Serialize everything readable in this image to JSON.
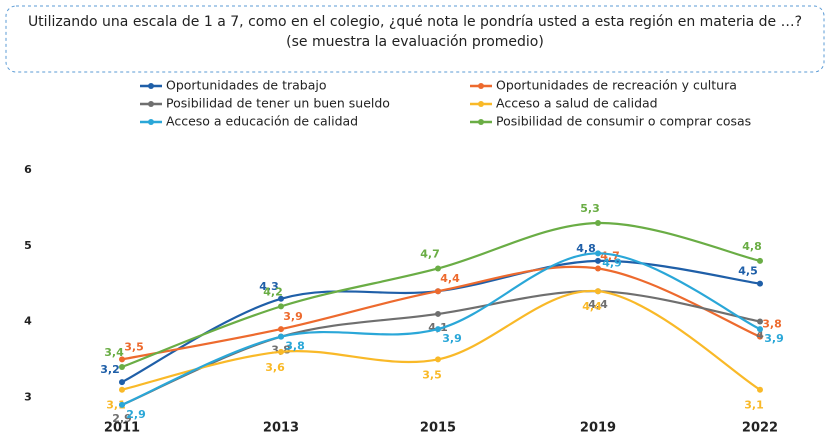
{
  "chart_data": {
    "type": "line",
    "title": "Utilizando una escala de 1 a 7, como en el colegio, ¿qué nota le pondría usted a esta región en materia de …? (se muestra la evaluación promedio)",
    "categories": [
      "2011",
      "2013",
      "2015",
      "2019",
      "2022"
    ],
    "ylim": [
      2.8,
      6.1
    ],
    "yticks": [
      3,
      4,
      5,
      6
    ],
    "grid": false,
    "series": [
      {
        "name": "Oportunidades de trabajo",
        "color": "#1f5fa8",
        "values": [
          3.2,
          4.3,
          4.4,
          4.8,
          4.5
        ],
        "value_labels": [
          "3,2",
          "4,3",
          null,
          "4,8",
          "4,5"
        ]
      },
      {
        "name": "Oportunidades de recreación y cultura",
        "color": "#ed6a2e",
        "values": [
          3.5,
          3.9,
          4.4,
          4.7,
          3.8
        ],
        "value_labels": [
          "3,5",
          "3,9",
          "4,4",
          "4,7",
          "3,8"
        ]
      },
      {
        "name": "Posibilidad de tener un buen sueldo",
        "color": "#6f6f6f",
        "values": [
          2.9,
          3.8,
          4.1,
          4.4,
          4
        ],
        "value_labels": [
          "2,9",
          "3,8",
          "4,1",
          "4,4",
          "4"
        ]
      },
      {
        "name": "Acceso a salud de calidad",
        "color": "#f9b928",
        "values": [
          3.1,
          3.6,
          3.5,
          4.4,
          3.1
        ],
        "value_labels": [
          "3,1",
          "3,6",
          "3,5",
          "4,4",
          "3,1"
        ]
      },
      {
        "name": "Acceso a educación de calidad",
        "color": "#2aa7d8",
        "values": [
          2.9,
          3.8,
          3.9,
          4.9,
          3.9
        ],
        "value_labels": [
          "2,9",
          "3,8",
          "3,9",
          "4,9",
          "3,9"
        ]
      },
      {
        "name": "Posibilidad de consumir o comprar cosas",
        "color": "#6aad45",
        "values": [
          3.4,
          4.2,
          4.7,
          5.3,
          4.8
        ],
        "value_labels": [
          "3,4",
          "4,2",
          "4,7",
          "5,3",
          "4,8"
        ]
      }
    ]
  }
}
